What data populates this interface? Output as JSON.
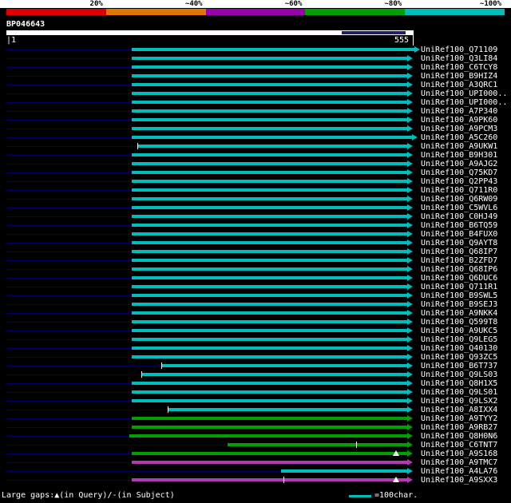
{
  "colors": {
    "cyan": "#00bdbd",
    "green": "#00a000",
    "magenta": "#b23ab2",
    "navy": "#000066",
    "marker": "#ffffff",
    "query_bar": "#ffffff",
    "query_dark_segment": "#202060"
  },
  "query": {
    "name": "BP046643",
    "ruler_start_display": "|1",
    "ruler_end": "555"
  },
  "footer": {
    "legend": "Large gaps:▲(in Query)/-(in Subject)",
    "unit_label": "=100char."
  },
  "chart_data": {
    "type": "bar",
    "orientation": "horizontal",
    "units": "px (640px canvas; query ruler spans 1..555 over x=8..518)",
    "x_axis": {
      "start_label": "1",
      "end_label": "555"
    },
    "score_scale": {
      "segments": [
        {
          "label": "20%",
          "color": "#dd0000"
        },
        {
          "label": "~40%",
          "color": "#dd7700"
        },
        {
          "label": "~60%",
          "color": "#9900aa"
        },
        {
          "label": "~80%",
          "color": "#00a000"
        },
        {
          "label": "~100%",
          "color": "#00bdbd"
        }
      ]
    },
    "hits": [
      {
        "label": "UniRef100_Q71109",
        "color": "cyan",
        "start": 165,
        "end": 519
      },
      {
        "label": "UniRef100_Q3LI84",
        "color": "cyan",
        "start": 165,
        "end": 510
      },
      {
        "label": "UniRef100_C6TCY8",
        "color": "cyan",
        "start": 165,
        "end": 510
      },
      {
        "label": "UniRef100_B9HIZ4",
        "color": "cyan",
        "start": 165,
        "end": 510
      },
      {
        "label": "UniRef100_A3QRC1",
        "color": "cyan",
        "start": 165,
        "end": 510
      },
      {
        "label": "UniRef100_UPI000..",
        "color": "cyan",
        "start": 165,
        "end": 510
      },
      {
        "label": "UniRef100_UPI000..",
        "color": "cyan",
        "start": 165,
        "end": 510
      },
      {
        "label": "UniRef100_A7P340",
        "color": "cyan",
        "start": 165,
        "end": 510
      },
      {
        "label": "UniRef100_A9PK60",
        "color": "cyan",
        "start": 165,
        "end": 510
      },
      {
        "label": "UniRef100_A9PCM3",
        "color": "cyan",
        "start": 165,
        "end": 510
      },
      {
        "label": "UniRef100_A5C260",
        "color": "cyan",
        "start": 165,
        "end": 516
      },
      {
        "label": "UniRef100_A9UKW1",
        "color": "cyan",
        "start": 172,
        "end": 510,
        "ticks": [
          172
        ]
      },
      {
        "label": "UniRef100_B9H301",
        "color": "cyan",
        "start": 165,
        "end": 510
      },
      {
        "label": "UniRef100_A9AJG2",
        "color": "cyan",
        "start": 165,
        "end": 510
      },
      {
        "label": "UniRef100_Q75KD7",
        "color": "cyan",
        "start": 165,
        "end": 510
      },
      {
        "label": "UniRef100_Q2PP43",
        "color": "cyan",
        "start": 165,
        "end": 510
      },
      {
        "label": "UniRef100_Q711R0",
        "color": "cyan",
        "start": 165,
        "end": 510
      },
      {
        "label": "UniRef100_Q6RW09",
        "color": "cyan",
        "start": 165,
        "end": 510
      },
      {
        "label": "UniRef100_C5WVL6",
        "color": "cyan",
        "start": 165,
        "end": 510
      },
      {
        "label": "UniRef100_C0HJ49",
        "color": "cyan",
        "start": 165,
        "end": 510
      },
      {
        "label": "UniRef100_B6TQ59",
        "color": "cyan",
        "start": 165,
        "end": 510
      },
      {
        "label": "UniRef100_B4FUX0",
        "color": "cyan",
        "start": 165,
        "end": 510
      },
      {
        "label": "UniRef100_Q9AYT8",
        "color": "cyan",
        "start": 165,
        "end": 510
      },
      {
        "label": "UniRef100_Q68IP7",
        "color": "cyan",
        "start": 165,
        "end": 510
      },
      {
        "label": "UniRef100_B2ZFD7",
        "color": "cyan",
        "start": 165,
        "end": 510
      },
      {
        "label": "UniRef100_Q68IP6",
        "color": "cyan",
        "start": 165,
        "end": 510
      },
      {
        "label": "UniRef100_Q6DUC6",
        "color": "cyan",
        "start": 165,
        "end": 510
      },
      {
        "label": "UniRef100_Q711R1",
        "color": "cyan",
        "start": 165,
        "end": 510
      },
      {
        "label": "UniRef100_B9SWL5",
        "color": "cyan",
        "start": 165,
        "end": 510
      },
      {
        "label": "UniRef100_B9SEJ3",
        "color": "cyan",
        "start": 165,
        "end": 510
      },
      {
        "label": "UniRef100_A9NKK4",
        "color": "cyan",
        "start": 165,
        "end": 510
      },
      {
        "label": "UniRef100_Q599T8",
        "color": "cyan",
        "start": 165,
        "end": 510
      },
      {
        "label": "UniRef100_A9UKC5",
        "color": "cyan",
        "start": 165,
        "end": 510
      },
      {
        "label": "UniRef100_Q9LEG5",
        "color": "cyan",
        "start": 165,
        "end": 510
      },
      {
        "label": "UniRef100_Q40130",
        "color": "cyan",
        "start": 165,
        "end": 510
      },
      {
        "label": "UniRef100_Q93ZC5",
        "color": "cyan",
        "start": 165,
        "end": 510
      },
      {
        "label": "UniRef100_B6T737",
        "color": "cyan",
        "start": 202,
        "end": 510,
        "ticks": [
          202
        ]
      },
      {
        "label": "UniRef100_Q9LS03",
        "color": "cyan",
        "start": 177,
        "end": 510,
        "ticks": [
          177
        ]
      },
      {
        "label": "UniRef100_Q8H1X5",
        "color": "cyan",
        "start": 165,
        "end": 510
      },
      {
        "label": "UniRef100_Q9LS01",
        "color": "cyan",
        "start": 165,
        "end": 510
      },
      {
        "label": "UniRef100_Q9LSX2",
        "color": "cyan",
        "start": 165,
        "end": 510
      },
      {
        "label": "UniRef100_A8IXX4",
        "color": "cyan",
        "start": 210,
        "end": 510,
        "ticks": [
          210
        ]
      },
      {
        "label": "UniRef100_A9TYY2",
        "color": "green",
        "start": 165,
        "end": 510
      },
      {
        "label": "UniRef100_A9RB27",
        "color": "green",
        "start": 165,
        "end": 510
      },
      {
        "label": "UniRef100_Q8H0N6",
        "color": "green",
        "start": 162,
        "end": 510
      },
      {
        "label": "UniRef100_C6TNT7",
        "color": "green",
        "start": 285,
        "end": 510,
        "ticks": [
          446
        ]
      },
      {
        "label": "UniRef100_A9S168",
        "color": "green",
        "start": 165,
        "end": 510,
        "triangles": [
          496
        ]
      },
      {
        "label": "UniRef100_A9TMC7",
        "color": "magenta",
        "start": 165,
        "end": 510
      },
      {
        "label": "UniRef100_A4LA76",
        "color": "cyan",
        "start": 352,
        "end": 510
      },
      {
        "label": "UniRef100_A9SXX3",
        "color": "magenta",
        "start": 165,
        "end": 510,
        "ticks": [
          355
        ],
        "triangles": [
          496
        ]
      }
    ]
  }
}
